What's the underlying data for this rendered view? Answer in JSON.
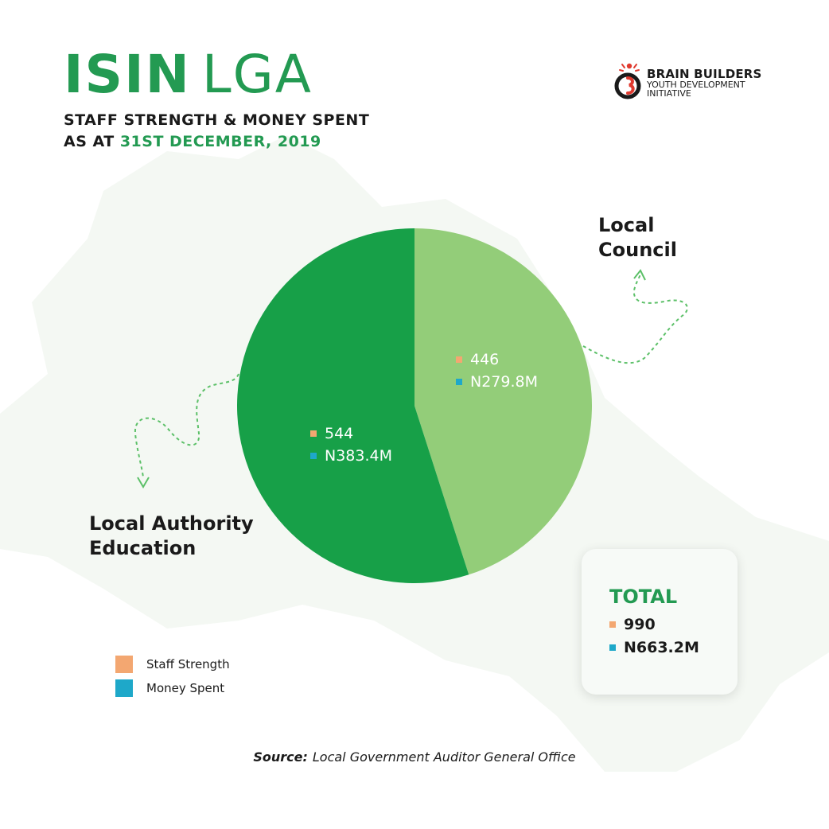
{
  "title": {
    "strong": "ISIN",
    "light": "LGA",
    "subtitle_line1": "STAFF STRENGTH & MONEY SPENT",
    "subtitle_line2_prefix": "AS AT",
    "subtitle_date": "31ST DECEMBER, 2019"
  },
  "logo": {
    "line1": "BRAIN BUILDERS",
    "line2": "YOUTH DEVELOPMENT",
    "line3": "INITIATIVE"
  },
  "colors": {
    "accent": "#239a52",
    "local_authority_education": "#17a048",
    "local_council": "#93cd79",
    "staff_strength": "#f3a771",
    "money_spent": "#1ea8c9"
  },
  "chart_data": {
    "type": "pie",
    "slices": [
      {
        "name": "Local Authority Education",
        "value": 544,
        "staff_label": "544",
        "money_label": "N383.4M",
        "money_value_millions": 383.4
      },
      {
        "name": "Local Council",
        "value": 446,
        "staff_label": "446",
        "money_label": "N279.8M",
        "money_value_millions": 279.8
      }
    ],
    "legend": [
      "Staff Strength",
      "Money Spent"
    ],
    "total": {
      "title": "TOTAL",
      "staff": "990",
      "money": "N663.2M"
    },
    "callouts": {
      "local_council": [
        "Local",
        "Council"
      ],
      "local_authority_education": [
        "Local Authority",
        "Education"
      ]
    }
  },
  "source": {
    "label": "Source:",
    "text": "Local Government Auditor General Office"
  }
}
